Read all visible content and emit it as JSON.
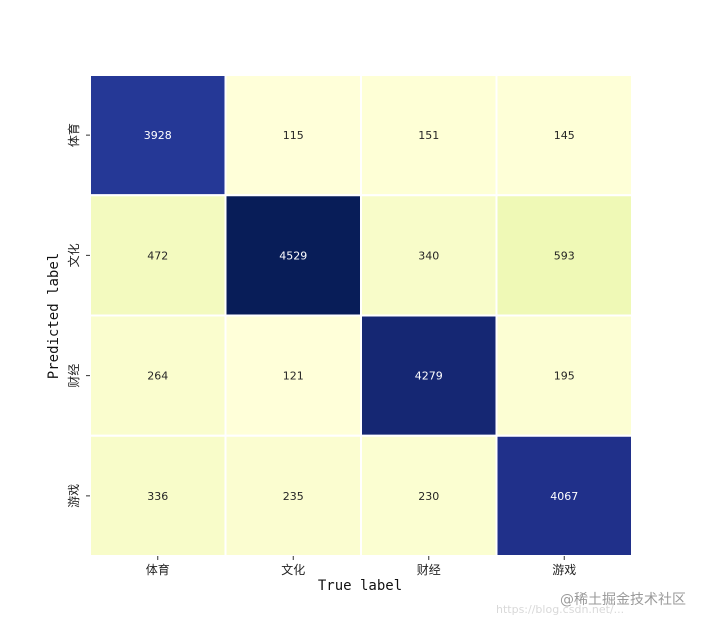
{
  "chart_data": {
    "type": "heatmap",
    "xlabel": "True label",
    "ylabel": "Predicted label",
    "x_categories": [
      "体育",
      "文化",
      "财经",
      "游戏"
    ],
    "y_categories": [
      "体育",
      "文化",
      "财经",
      "游戏"
    ],
    "matrix": [
      [
        3928,
        115,
        151,
        145
      ],
      [
        472,
        4529,
        340,
        593
      ],
      [
        264,
        121,
        4279,
        195
      ],
      [
        336,
        235,
        230,
        4067
      ]
    ],
    "colormap": "YlGnBu",
    "grid_line_color": "#ffffff"
  },
  "watermark": {
    "main": "@稀土掘金技术社区",
    "sub": "https://blog.csdn.net/..."
  }
}
